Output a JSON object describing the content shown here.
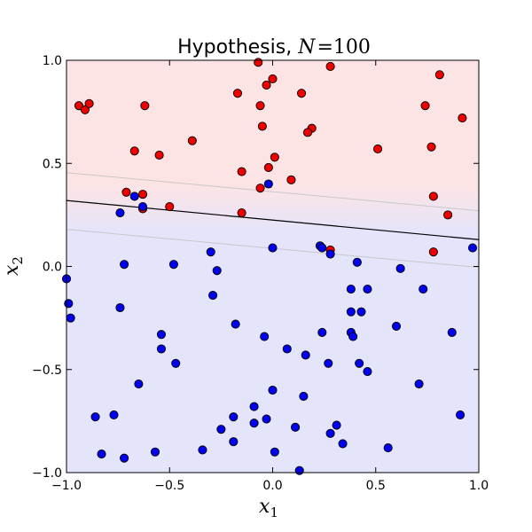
{
  "chart_data": {
    "type": "scatter",
    "title": {
      "text": "Hypothesis, ",
      "math_var": "N",
      "math_eq": "=",
      "math_val": "100"
    },
    "xlabel": {
      "var": "x",
      "sub": "1"
    },
    "ylabel": {
      "var": "x",
      "sub": "2"
    },
    "xlim": [
      -1.0,
      1.0
    ],
    "ylim": [
      -1.0,
      1.0
    ],
    "xticks": [
      -1.0,
      -0.5,
      0.0,
      0.5,
      1.0
    ],
    "yticks": [
      -1.0,
      -0.5,
      0.0,
      0.5,
      1.0
    ],
    "xtick_labels": [
      "−1.0",
      "−0.5",
      "0.0",
      "0.5",
      "1.0"
    ],
    "ytick_labels": [
      "−1.0",
      "−0.5",
      "0.0",
      "0.5",
      "1.0"
    ],
    "grid": false,
    "colors": {
      "positive_region": "#fde4e4",
      "negative_region": "#e4e4fb",
      "positive_point": "#ee0000",
      "negative_point": "#0000ee",
      "boundary": "#000000",
      "margin_lines": "#c8c8c8"
    },
    "boundary": {
      "x": [
        -1.0,
        1.0
      ],
      "y": [
        0.32,
        0.13
      ]
    },
    "margin_lines": [
      {
        "x": [
          -1.0,
          1.0
        ],
        "y": [
          0.455,
          0.27
        ]
      },
      {
        "x": [
          -1.0,
          1.0
        ],
        "y": [
          0.18,
          -0.005
        ]
      }
    ],
    "series": [
      {
        "class": "positive",
        "points": [
          [
            -0.94,
            0.78
          ],
          [
            -0.91,
            0.76
          ],
          [
            -0.89,
            0.79
          ],
          [
            -0.62,
            0.78
          ],
          [
            -0.67,
            0.56
          ],
          [
            -0.55,
            0.54
          ],
          [
            -0.39,
            0.61
          ],
          [
            -0.71,
            0.36
          ],
          [
            -0.63,
            0.35
          ],
          [
            -0.63,
            0.28
          ],
          [
            -0.5,
            0.29
          ],
          [
            -0.07,
            0.99
          ],
          [
            -0.03,
            0.88
          ],
          [
            0.0,
            0.91
          ],
          [
            0.28,
            0.97
          ],
          [
            -0.17,
            0.84
          ],
          [
            -0.06,
            0.78
          ],
          [
            0.14,
            0.84
          ],
          [
            -0.05,
            0.68
          ],
          [
            0.19,
            0.67
          ],
          [
            0.17,
            0.65
          ],
          [
            0.01,
            0.53
          ],
          [
            -0.15,
            0.46
          ],
          [
            -0.02,
            0.48
          ],
          [
            0.09,
            0.42
          ],
          [
            -0.06,
            0.38
          ],
          [
            -0.15,
            0.26
          ],
          [
            0.28,
            0.08
          ],
          [
            0.51,
            0.57
          ],
          [
            0.74,
            0.78
          ],
          [
            0.81,
            0.93
          ],
          [
            0.92,
            0.72
          ],
          [
            0.77,
            0.58
          ],
          [
            0.78,
            0.34
          ],
          [
            0.85,
            0.25
          ],
          [
            0.78,
            0.07
          ]
        ]
      },
      {
        "class": "negative",
        "points": [
          [
            -0.67,
            0.34
          ],
          [
            -0.63,
            0.29
          ],
          [
            -0.74,
            0.26
          ],
          [
            -0.02,
            0.4
          ],
          [
            0.0,
            0.09
          ],
          [
            0.23,
            0.1
          ],
          [
            0.24,
            0.09
          ],
          [
            0.28,
            0.06
          ],
          [
            0.97,
            0.09
          ],
          [
            -0.72,
            0.01
          ],
          [
            -0.48,
            0.01
          ],
          [
            -0.3,
            0.07
          ],
          [
            -0.27,
            -0.02
          ],
          [
            0.41,
            0.02
          ],
          [
            0.62,
            -0.01
          ],
          [
            -1.0,
            -0.06
          ],
          [
            -0.99,
            -0.18
          ],
          [
            -0.98,
            -0.25
          ],
          [
            -0.74,
            -0.2
          ],
          [
            -0.29,
            -0.14
          ],
          [
            0.38,
            -0.11
          ],
          [
            0.46,
            -0.11
          ],
          [
            0.73,
            -0.11
          ],
          [
            0.38,
            -0.22
          ],
          [
            0.43,
            -0.22
          ],
          [
            -0.18,
            -0.28
          ],
          [
            0.6,
            -0.29
          ],
          [
            -0.54,
            -0.33
          ],
          [
            -0.04,
            -0.34
          ],
          [
            0.24,
            -0.32
          ],
          [
            0.38,
            -0.32
          ],
          [
            0.39,
            -0.34
          ],
          [
            0.87,
            -0.32
          ],
          [
            -0.54,
            -0.4
          ],
          [
            0.07,
            -0.4
          ],
          [
            0.16,
            -0.43
          ],
          [
            -0.47,
            -0.47
          ],
          [
            0.27,
            -0.47
          ],
          [
            0.42,
            -0.47
          ],
          [
            0.46,
            -0.51
          ],
          [
            -0.65,
            -0.57
          ],
          [
            0.0,
            -0.6
          ],
          [
            0.15,
            -0.63
          ],
          [
            0.71,
            -0.57
          ],
          [
            -0.09,
            -0.68
          ],
          [
            -0.86,
            -0.73
          ],
          [
            -0.77,
            -0.72
          ],
          [
            -0.19,
            -0.73
          ],
          [
            -0.03,
            -0.74
          ],
          [
            -0.09,
            -0.76
          ],
          [
            -0.25,
            -0.79
          ],
          [
            0.11,
            -0.78
          ],
          [
            0.31,
            -0.77
          ],
          [
            0.28,
            -0.81
          ],
          [
            0.91,
            -0.72
          ],
          [
            -0.19,
            -0.85
          ],
          [
            0.34,
            -0.86
          ],
          [
            -0.83,
            -0.91
          ],
          [
            -0.72,
            -0.93
          ],
          [
            -0.57,
            -0.9
          ],
          [
            -0.34,
            -0.89
          ],
          [
            0.01,
            -0.9
          ],
          [
            0.56,
            -0.88
          ],
          [
            0.13,
            -0.99
          ]
        ]
      }
    ]
  }
}
